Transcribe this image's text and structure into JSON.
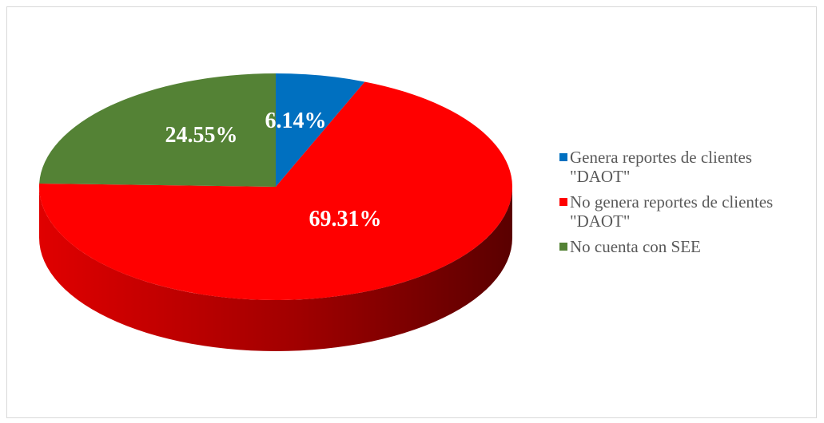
{
  "chart_data": {
    "type": "pie",
    "title": "",
    "categories": [
      "Genera reportes de clientes \"DAOT\"",
      "No genera reportes de clientes \"DAOT\"",
      "No cuenta con SEE"
    ],
    "values": [
      6.14,
      69.31,
      24.55
    ],
    "data_labels": [
      "6.14%",
      "69.31%",
      "24.55%"
    ],
    "colors": [
      "#0070c0",
      "#ff0000",
      "#548235"
    ],
    "side_colors": [
      "#00508a",
      "#c00000",
      "#3b5c25"
    ],
    "style": "3d",
    "legend_position": "right"
  }
}
